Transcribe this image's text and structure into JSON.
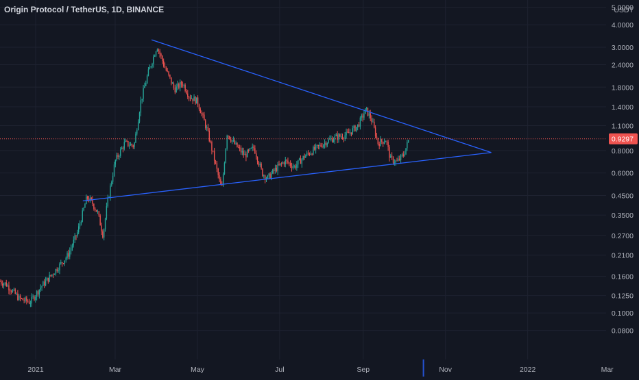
{
  "header": {
    "symbol_title": "Origin Protocol / TetherUS, 1D, BINANCE"
  },
  "price_axis": {
    "currency_label": "USDT",
    "ticks": [
      "5.0000",
      "4.0000",
      "3.0000",
      "2.4000",
      "1.8000",
      "1.4000",
      "1.1000",
      "0.8000",
      "0.6000",
      "0.4500",
      "0.3500",
      "0.2700",
      "0.2100",
      "0.1600",
      "0.1250",
      "0.1000",
      "0.0800"
    ],
    "current_price_label": "0.9297"
  },
  "time_axis": {
    "ticks": [
      "2021",
      "Mar",
      "May",
      "Jul",
      "Sep",
      "Nov",
      "2022",
      "Mar"
    ]
  },
  "colors": {
    "background": "#131722",
    "grid": "#1e2230",
    "up_candle": "#26a69a",
    "down_candle": "#ef5350",
    "trendline": "#2962ff",
    "price_badge": "#ef5350",
    "axis_text": "#b2b5be",
    "title_text": "#d1d4dc"
  },
  "chart_data": {
    "type": "candlestick",
    "title": "Origin Protocol / TetherUS, 1D, BINANCE",
    "y_scale": "log",
    "ylim": [
      0.08,
      5.0
    ],
    "xlim": [
      "2020-12-01",
      "2022-03-20"
    ],
    "current_price": 0.9297,
    "series": [
      {
        "x": [
          "2020-12-01",
          "2020-12-10",
          "2020-12-20",
          "2020-12-28",
          "2021-01-05",
          "2021-01-15",
          "2021-01-25",
          "2021-02-01",
          "2021-02-08",
          "2021-02-12",
          "2021-02-16",
          "2021-02-20",
          "2021-02-23",
          "2021-03-01",
          "2021-03-08",
          "2021-03-15",
          "2021-03-20",
          "2021-03-25",
          "2021-04-01",
          "2021-04-07",
          "2021-04-14",
          "2021-04-20",
          "2021-04-25",
          "2021-05-01",
          "2021-05-08",
          "2021-05-12",
          "2021-05-19",
          "2021-05-23",
          "2021-05-28",
          "2021-06-05",
          "2021-06-12",
          "2021-06-18",
          "2021-06-22",
          "2021-06-28",
          "2021-07-05",
          "2021-07-12",
          "2021-07-20",
          "2021-07-28",
          "2021-08-05",
          "2021-08-12",
          "2021-08-20",
          "2021-08-28",
          "2021-09-03",
          "2021-09-07",
          "2021-09-12",
          "2021-09-18",
          "2021-09-21",
          "2021-09-26",
          "2021-10-01",
          "2021-10-05"
        ],
        "close": [
          0.155,
          0.145,
          0.12,
          0.115,
          0.14,
          0.17,
          0.21,
          0.28,
          0.44,
          0.41,
          0.36,
          0.27,
          0.4,
          0.7,
          0.88,
          0.85,
          1.5,
          2.1,
          3.05,
          2.3,
          1.75,
          1.9,
          1.6,
          1.5,
          1.05,
          0.8,
          0.48,
          1.0,
          0.88,
          0.75,
          0.83,
          0.6,
          0.56,
          0.63,
          0.7,
          0.65,
          0.75,
          0.82,
          0.9,
          0.95,
          0.98,
          1.1,
          1.35,
          1.2,
          0.88,
          0.92,
          0.72,
          0.69,
          0.76,
          0.93
        ]
      }
    ],
    "trendlines": [
      {
        "name": "",
        "points": [
          [
            "2021-03-28",
            3.3
          ],
          [
            "2021-12-05",
            0.78
          ]
        ]
      },
      {
        "name": "",
        "points": [
          [
            "2021-02-05",
            0.42
          ],
          [
            "2021-12-05",
            0.78
          ]
        ]
      }
    ]
  }
}
